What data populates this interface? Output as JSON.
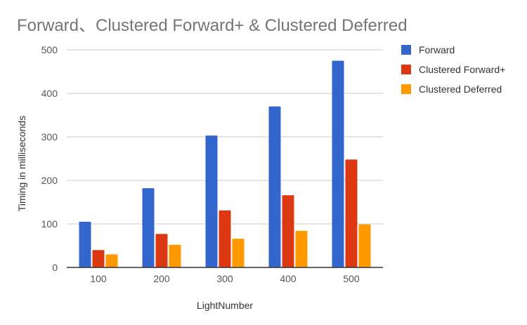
{
  "chart_data": {
    "type": "bar",
    "title": "Forward、Clustered Forward+ & Clustered Deferred",
    "xlabel": "LightNumber",
    "ylabel": "Timing in milliseconds",
    "categories": [
      "100",
      "200",
      "300",
      "400",
      "500"
    ],
    "series": [
      {
        "name": "Forward",
        "color": "#3366cc",
        "values": [
          105,
          182,
          303,
          370,
          475
        ]
      },
      {
        "name": "Clustered Forward+",
        "color": "#dc3912",
        "values": [
          40,
          77,
          131,
          166,
          248
        ]
      },
      {
        "name": "Clustered Deferred",
        "color": "#ff9900",
        "values": [
          30,
          52,
          66,
          84,
          99
        ]
      }
    ],
    "ylim": [
      0,
      500
    ],
    "yticks": [
      "0",
      "100",
      "200",
      "300",
      "400",
      "500"
    ],
    "grid": true,
    "legend_position": "right"
  }
}
